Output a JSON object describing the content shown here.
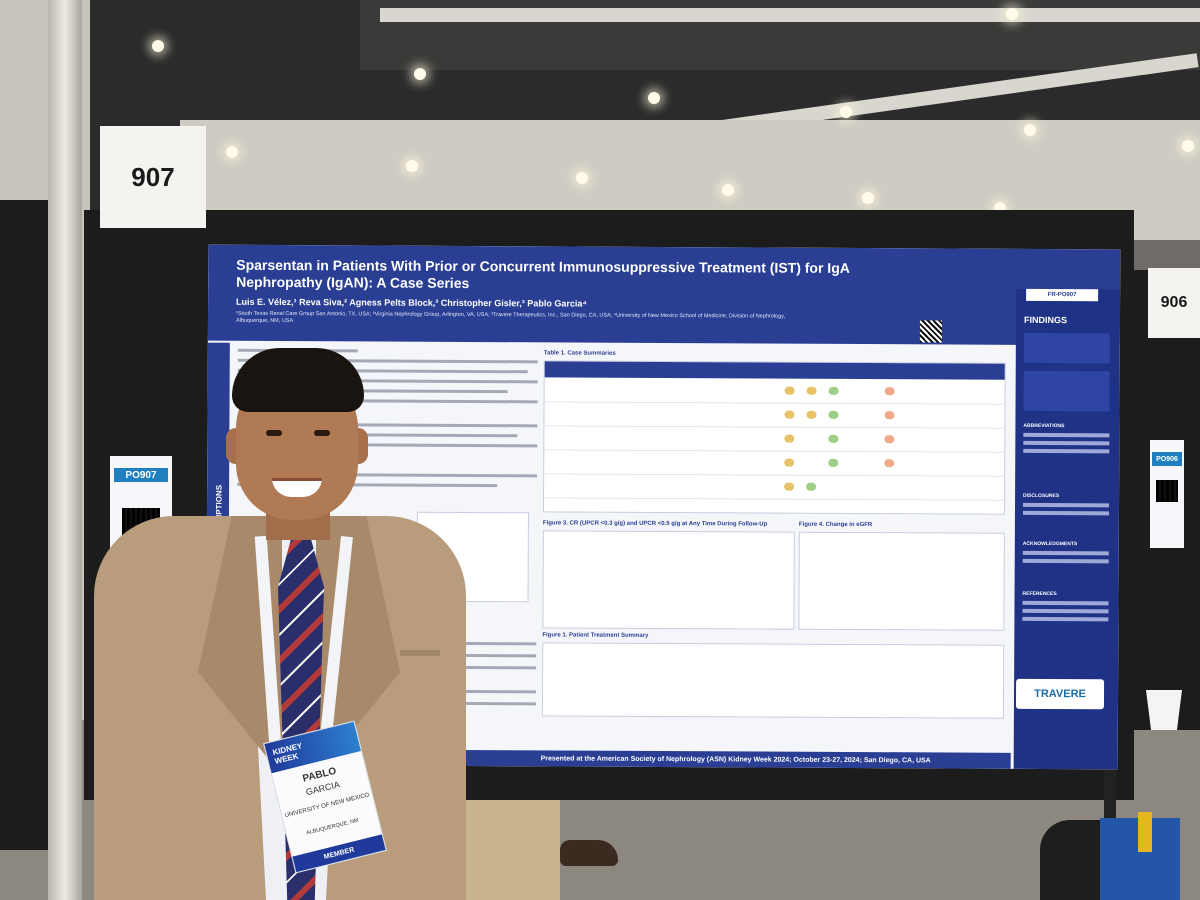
{
  "booth_signs": {
    "left": "907",
    "right": "906"
  },
  "poster": {
    "title": "Sparsentan in Patients With Prior or Concurrent Immunosuppressive Treatment (IST) for IgA Nephropathy (IgAN): A Case Series",
    "authors": "Luis E. Vélez,¹ Reva Siva,² Agness Pelts Block,³ Christopher Gisler,³ Pablo Garcia⁴",
    "affiliations": "¹South Texas Renal Care Group San Antonio, TX, USA; ²Virginia Nephrology Group, Arlington, VA, USA; ³Travere Therapeutics, Inc., San Diego, CA, USA; ⁴University of New Mexico School of Medicine, Division of Nephrology, Albuquerque, NM, USA",
    "code": "FR-PO907",
    "side_section": "CASE DESCRIPTIONS",
    "table_title": "Table 1. Case Summaries",
    "figure3_title": "Figure 3. CR (UPCR <0.3 g/g) and UPCR <0.5 g/g at Any Time During Follow-Up",
    "figure4_title": "Figure 4. Change in eGFR",
    "figure1_title": "Figure 1. Patient Treatment Summary",
    "findings_title": "FINDINGS",
    "sidebar_heads": [
      "ABBREVIATIONS",
      "DISCLOSURES",
      "ACKNOWLEDGMENTS",
      "REFERENCES"
    ],
    "logo": "TRAVERE",
    "footer": "Presented at the American Society of Nephrology (ASN) Kidney Week 2024; October 23-27, 2024; San Diego, CA, USA"
  },
  "board_badges": {
    "left": "PO907",
    "right": "PO906"
  },
  "name_badge": {
    "event_line1": "KIDNEY",
    "event_line2": "WEEK",
    "first_name": "PABLO",
    "last_name": "GARCIA",
    "affiliation": "UNIVERSITY OF NEW MEXICO",
    "city": "ALBUQUERQUE, NM",
    "role": "MEMBER"
  },
  "colors": {
    "poster_blue": "#2a3f94",
    "jacket": "#b99c7c",
    "tie_navy": "#2a2f6b",
    "tie_red": "#b33a3a"
  }
}
